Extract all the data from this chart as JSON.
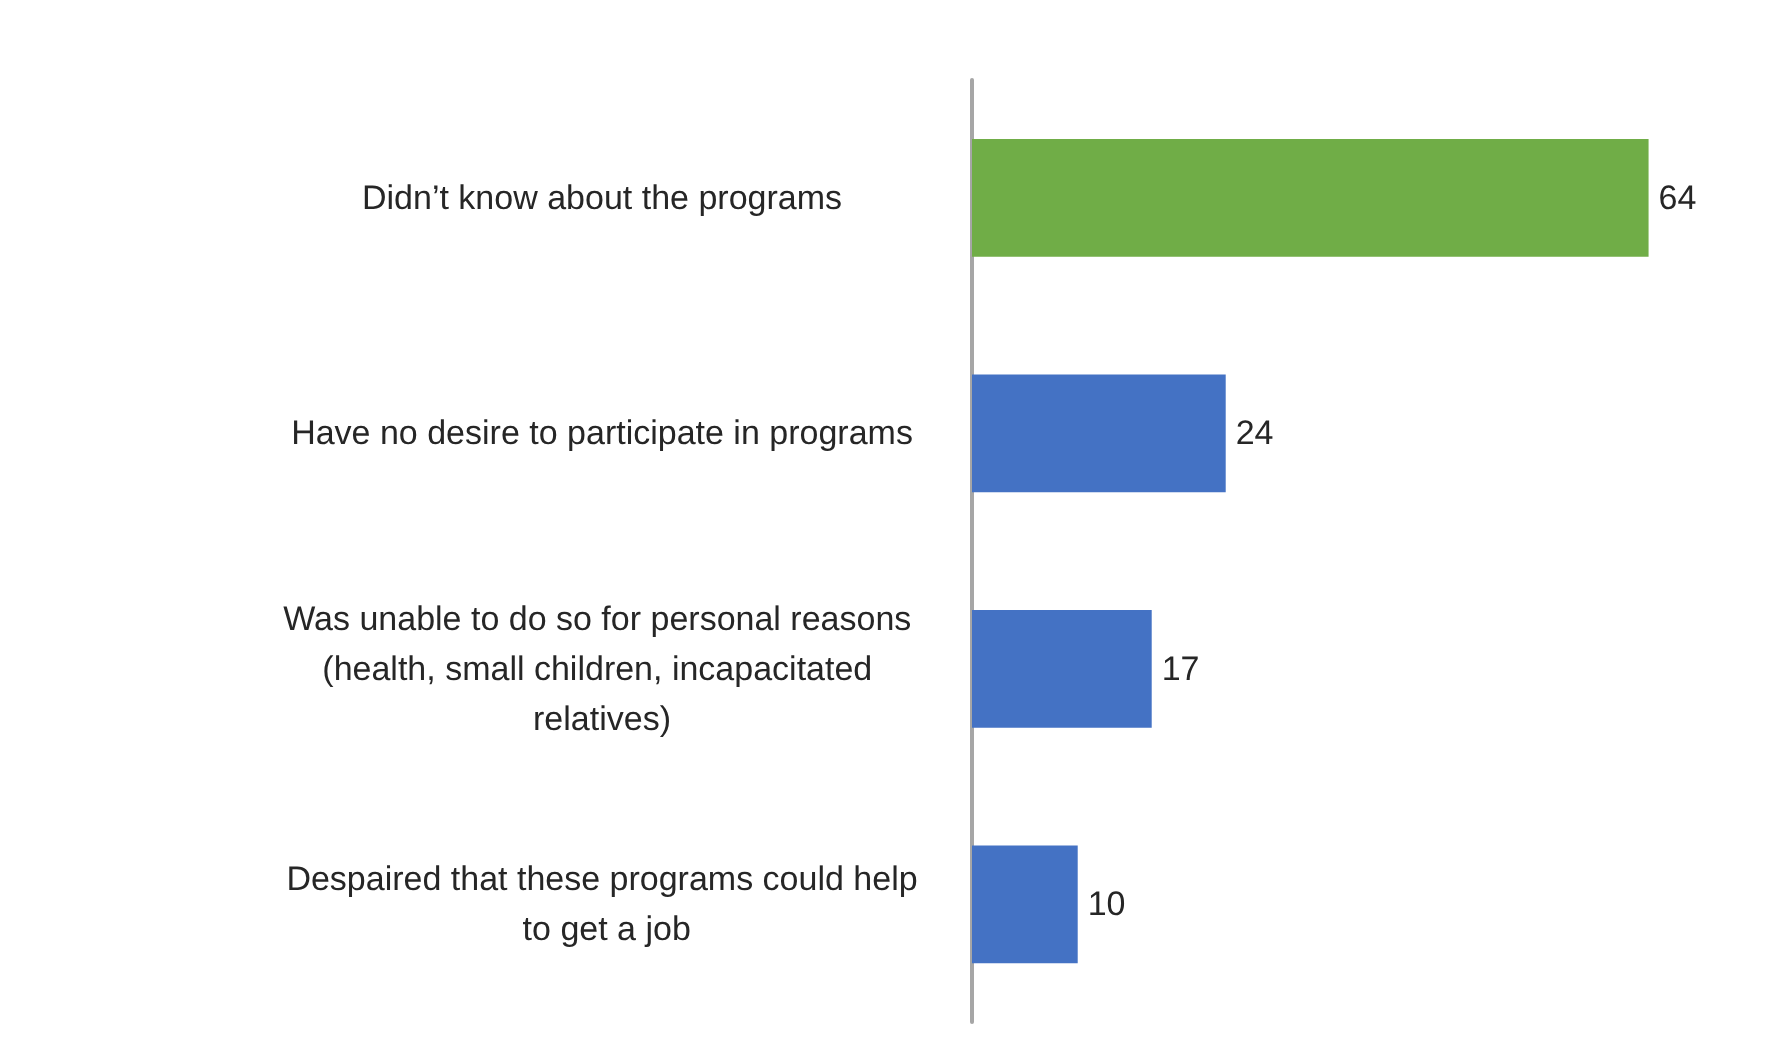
{
  "chart_data": {
    "type": "bar",
    "orientation": "horizontal",
    "categories": [
      "Didn’t know about the programs",
      "Have no desire to participate in programs",
      "Was unable to do so for personal reasons (health, small children, incapacitated relatives)",
      "Despaired that these programs could help to get a job"
    ],
    "values": [
      64,
      24,
      17,
      10
    ],
    "colors": [
      "#70ad47",
      "#4472c4",
      "#4472c4",
      "#4472c4"
    ],
    "data_labels": true
  }
}
